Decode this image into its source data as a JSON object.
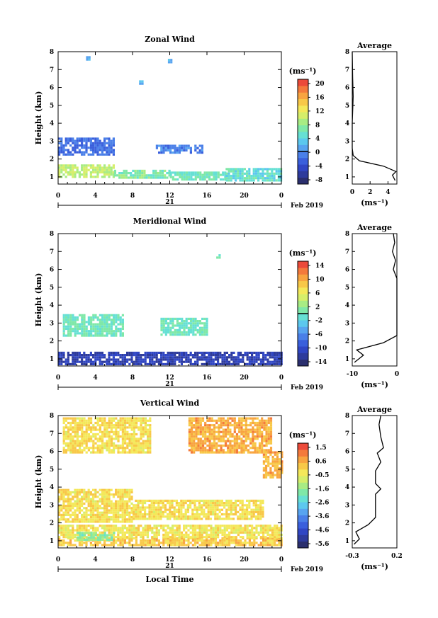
{
  "date_label": "Feb 2019",
  "chart_data": [
    {
      "type": "heatmap",
      "title": "Zonal Wind",
      "xlabel": "",
      "ylabel": "Height (km)",
      "x_ticks": [
        "0",
        "4",
        "8",
        "12",
        "16",
        "20",
        "0"
      ],
      "day_label": "21",
      "xlim": [
        0,
        24
      ],
      "y_ticks": [
        "1",
        "2",
        "3",
        "4",
        "5",
        "6",
        "7",
        "8"
      ],
      "ylim": [
        0.6,
        8
      ],
      "colorbar": {
        "unit": "(ms⁻¹)",
        "ticks": [
          "20",
          "16",
          "12",
          "8",
          "4",
          "0",
          "-4",
          "-8"
        ],
        "range": [
          -10,
          22
        ],
        "mark_value": 0
      },
      "cells": [
        {
          "t0": 0,
          "t1": 6,
          "h0": 1.0,
          "h1": 1.7,
          "v": 10
        },
        {
          "t0": 6,
          "t1": 12,
          "h0": 0.9,
          "h1": 1.4,
          "v": 7
        },
        {
          "t0": 12,
          "t1": 18,
          "h0": 0.8,
          "h1": 1.3,
          "v": 6
        },
        {
          "t0": 18,
          "t1": 24,
          "h0": 0.8,
          "h1": 1.5,
          "v": 5
        },
        {
          "t0": 0,
          "t1": 6,
          "h0": 2.3,
          "h1": 3.2,
          "v": -2
        },
        {
          "t0": 10.5,
          "t1": 15.5,
          "h0": 2.3,
          "h1": 2.8,
          "v": -1
        },
        {
          "t0": 3,
          "t1": 3.3,
          "h0": 7.6,
          "h1": 7.75,
          "v": 2
        },
        {
          "t0": 8.7,
          "t1": 9,
          "h0": 6.25,
          "h1": 6.4,
          "v": 2
        },
        {
          "t0": 11.8,
          "t1": 12.1,
          "h0": 7.45,
          "h1": 7.6,
          "v": 2
        }
      ],
      "average_profile": {
        "title": "Average",
        "xlabel": "(ms⁻¹)",
        "x_ticks": [
          "0",
          "2",
          "4"
        ],
        "xlim": [
          0,
          5
        ],
        "points": [
          [
            4.8,
            0.8
          ],
          [
            4.5,
            1.1
          ],
          [
            4.9,
            1.3
          ],
          [
            3.5,
            1.6
          ],
          [
            0.8,
            1.9
          ],
          [
            0.1,
            2.2
          ],
          [
            0.0,
            2.6
          ],
          [
            0.0,
            4.0
          ],
          [
            0.1,
            5.5
          ],
          [
            0.05,
            6.5
          ],
          [
            0.0,
            8.0
          ]
        ]
      }
    },
    {
      "type": "heatmap",
      "title": "Meridional Wind",
      "xlabel": "",
      "ylabel": "Height (km)",
      "x_ticks": [
        "0",
        "4",
        "8",
        "12",
        "16",
        "20",
        "0"
      ],
      "day_label": "21",
      "xlim": [
        0,
        24
      ],
      "y_ticks": [
        "1",
        "2",
        "3",
        "4",
        "5",
        "6",
        "7",
        "8"
      ],
      "ylim": [
        0.6,
        8
      ],
      "colorbar": {
        "unit": "(ms⁻¹)",
        "ticks": [
          "14",
          "10",
          "6",
          "2",
          "-2",
          "-6",
          "-10",
          "-14"
        ],
        "range": [
          -16,
          16
        ],
        "mark_value": 0
      },
      "cells": [
        {
          "t0": 0,
          "t1": 24,
          "h0": 0.7,
          "h1": 1.4,
          "v": -12
        },
        {
          "t0": 0.5,
          "t1": 7,
          "h0": 2.3,
          "h1": 3.5,
          "v": 0
        },
        {
          "t0": 11,
          "t1": 16,
          "h0": 2.3,
          "h1": 3.3,
          "v": 0
        },
        {
          "t0": 17,
          "t1": 17.3,
          "h0": 6.7,
          "h1": 6.85,
          "v": 0
        }
      ],
      "average_profile": {
        "title": "Average",
        "xlabel": "(ms⁻¹)",
        "x_ticks": [
          "-10",
          "0"
        ],
        "xlim": [
          -10,
          0
        ],
        "points": [
          [
            -9.5,
            0.8
          ],
          [
            -7.5,
            1.2
          ],
          [
            -9.0,
            1.5
          ],
          [
            -3.0,
            1.9
          ],
          [
            0.0,
            2.3
          ],
          [
            0.0,
            5.5
          ],
          [
            -0.8,
            6.0
          ],
          [
            -0.3,
            6.5
          ],
          [
            -1.0,
            7.0
          ],
          [
            -0.5,
            7.5
          ],
          [
            -0.8,
            8.0
          ]
        ]
      }
    },
    {
      "type": "heatmap",
      "title": "Vertical Wind",
      "xlabel": "Local Time",
      "ylabel": "Height (km)",
      "x_ticks": [
        "0",
        "4",
        "8",
        "12",
        "16",
        "20",
        "0"
      ],
      "day_label": "21",
      "xlim": [
        0,
        24
      ],
      "y_ticks": [
        "1",
        "2",
        "3",
        "4",
        "5",
        "6",
        "7",
        "8"
      ],
      "ylim": [
        0.6,
        8
      ],
      "colorbar": {
        "unit": "(ms⁻¹)",
        "ticks": [
          "1.5",
          "0.6",
          "-0.5",
          "-1.6",
          "-2.6",
          "-3.6",
          "-4.6",
          "-5.6"
        ],
        "range": [
          -6,
          2
        ],
        "mark_value": null
      },
      "cells": [
        {
          "t0": 0,
          "t1": 24,
          "h0": 0.8,
          "h1": 1.2,
          "v": 0.2
        },
        {
          "t0": 0,
          "t1": 24,
          "h0": 1.2,
          "h1": 1.9,
          "v": -0.2
        },
        {
          "t0": 2,
          "t1": 6,
          "h0": 1.1,
          "h1": 1.5,
          "v": -1.6
        },
        {
          "t0": 0,
          "t1": 8,
          "h0": 2.1,
          "h1": 3.9,
          "v": -0.1
        },
        {
          "t0": 8,
          "t1": 22,
          "h0": 2.2,
          "h1": 3.3,
          "v": -0.1
        },
        {
          "t0": 0.5,
          "t1": 10,
          "h0": 6.0,
          "h1": 7.9,
          "v": -0.1
        },
        {
          "t0": 14,
          "t1": 23,
          "h0": 6.0,
          "h1": 7.9,
          "v": 0.6
        },
        {
          "t0": 22,
          "t1": 24,
          "h0": 4.5,
          "h1": 6.0,
          "v": 0.6
        }
      ],
      "average_profile": {
        "title": "Average",
        "xlabel": "(ms⁻¹)",
        "x_ticks": [
          "-0.3",
          "0.2"
        ],
        "xlim": [
          -0.3,
          0.2
        ],
        "points": [
          [
            -0.28,
            0.8
          ],
          [
            -0.22,
            1.1
          ],
          [
            -0.26,
            1.5
          ],
          [
            -0.12,
            1.9
          ],
          [
            -0.04,
            2.3
          ],
          [
            -0.04,
            3.6
          ],
          [
            0.02,
            3.9
          ],
          [
            -0.04,
            4.2
          ],
          [
            -0.04,
            4.9
          ],
          [
            0.02,
            5.4
          ],
          [
            -0.02,
            5.9
          ],
          [
            0.05,
            6.2
          ],
          [
            0.02,
            6.8
          ],
          [
            0.0,
            7.5
          ],
          [
            0.02,
            8.0
          ]
        ]
      }
    }
  ]
}
